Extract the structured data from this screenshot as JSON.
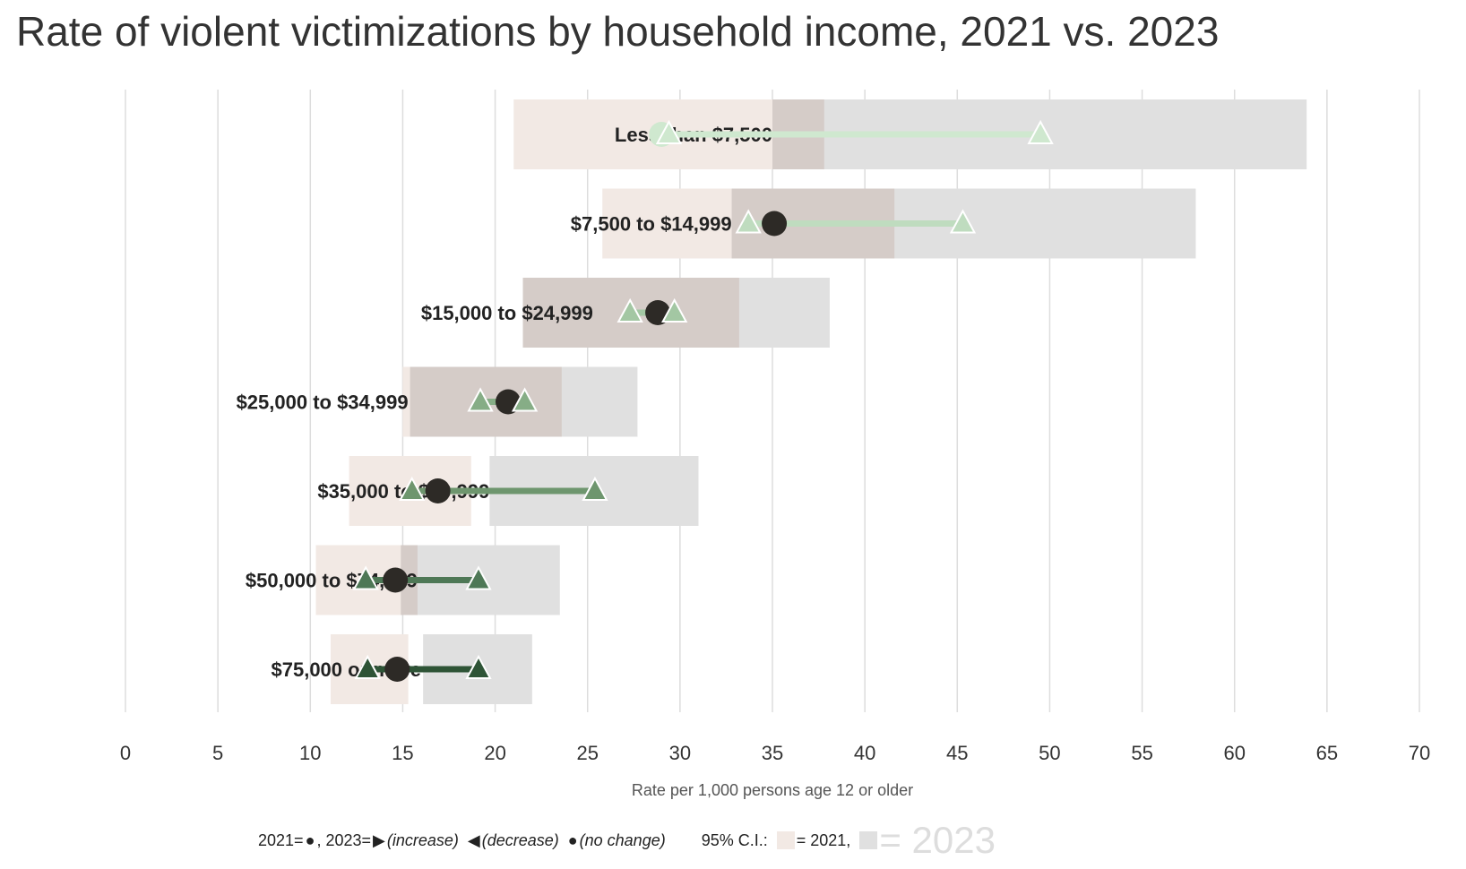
{
  "chart_data": {
    "type": "dot",
    "title": "Rate of violent victimizations by household income, 2021 vs. 2023",
    "xlabel": "Rate per 1,000 persons age 12 or older",
    "xlim": [
      0,
      70
    ],
    "xticks": [
      0,
      5,
      10,
      15,
      20,
      25,
      30,
      35,
      40,
      45,
      50,
      55,
      60,
      65,
      70
    ],
    "grid": true,
    "categories": [
      "Less than $7,500",
      "$7,500 to $14,999",
      "$15,000 to $24,999",
      "$25,000 to $34,999",
      "$35,000 to $49,999",
      "$50,000 to $74,999",
      "$75,000 or more"
    ],
    "label_values": [
      35.0,
      32.8,
      25.3,
      15.3,
      19.7,
      15.8,
      16.0
    ],
    "series": [
      {
        "name": "2021",
        "values": [
          29.0,
          35.1,
          28.8,
          20.7,
          16.9,
          14.6,
          14.7
        ]
      },
      {
        "name": "2023",
        "values": [
          49.5,
          45.3,
          29.7,
          21.6,
          25.4,
          19.1,
          19.1
        ]
      }
    ],
    "ci_2021": [
      [
        21.0,
        37.8
      ],
      [
        25.8,
        41.6
      ],
      [
        21.5,
        33.2
      ],
      [
        15.0,
        23.6
      ],
      [
        12.1,
        18.7
      ],
      [
        10.3,
        15.8
      ],
      [
        11.1,
        15.3
      ]
    ],
    "ci_2023": [
      [
        35.0,
        63.9
      ],
      [
        32.8,
        57.9
      ],
      [
        21.5,
        38.1
      ],
      [
        15.4,
        27.7
      ],
      [
        19.7,
        31.0
      ],
      [
        14.9,
        23.5
      ],
      [
        16.1,
        22.0
      ]
    ],
    "secondary_markers": [
      29.4,
      33.7,
      27.3,
      19.2,
      15.5,
      13.0,
      13.1
    ],
    "colors": {
      "ci_2021": "#f2e9e4",
      "ci_2023": "#e0e0e0",
      "ci_overlap": "#d5ccc8",
      "dot_2021": "#2d2a26",
      "grid": "#dddddd",
      "rows": [
        "#cfe8cf",
        "#bfdcbf",
        "#a3c7a3",
        "#86ad86",
        "#6e966e",
        "#4e7856",
        "#2e5436"
      ]
    }
  },
  "legend": {
    "text_2021": "2021=",
    "text_2023": ", 2023=",
    "increase": "(increase)",
    "decrease": "(decrease)",
    "no_change": "(no change)",
    "ci_label": "95% C.I.:",
    "ci_2021_text": "= 2021,",
    "ci_2023_text": "= 2023"
  }
}
